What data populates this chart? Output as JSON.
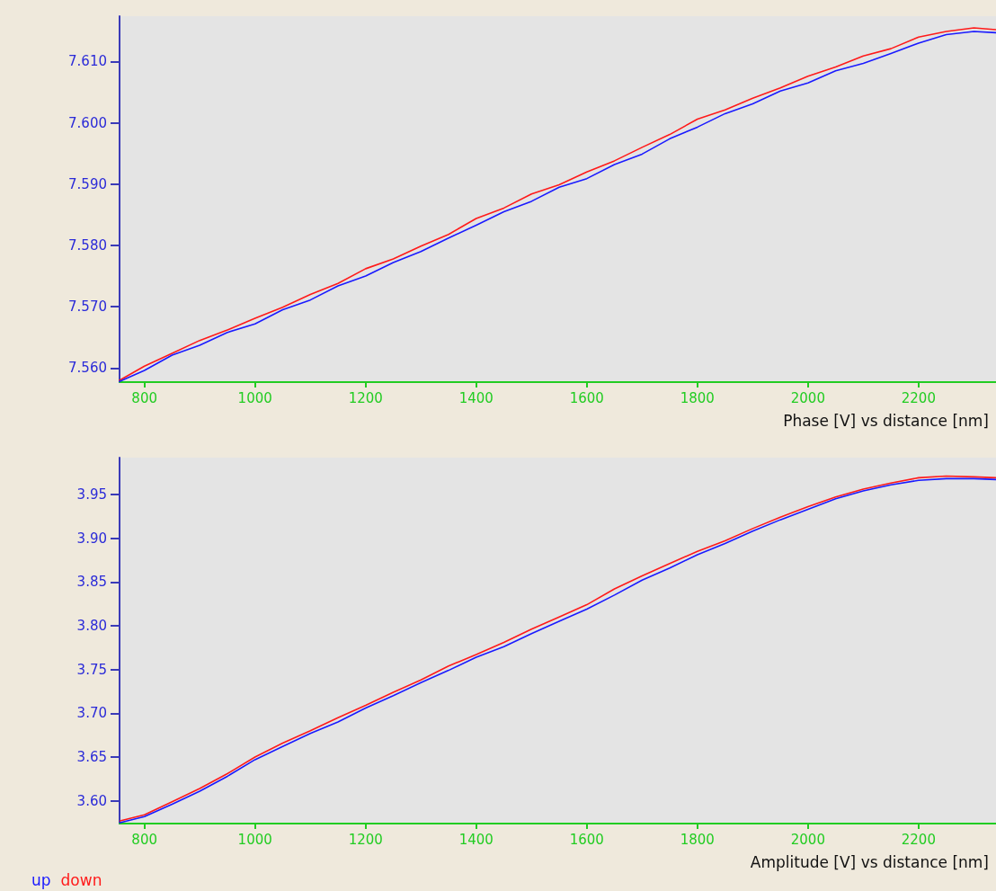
{
  "chart_data": [
    {
      "type": "line",
      "xlabel": "Phase [V] vs distance [nm]",
      "xlim": [
        755,
        2340
      ],
      "ylim": [
        7.5577,
        7.6174
      ],
      "xticks": [
        800,
        1000,
        1200,
        1400,
        1600,
        1800,
        2000,
        2200
      ],
      "yticks": [
        {
          "value": 7.56,
          "label": "7.560"
        },
        {
          "value": 7.57,
          "label": "7.570"
        },
        {
          "value": 7.58,
          "label": "7.580"
        },
        {
          "value": 7.59,
          "label": "7.590"
        },
        {
          "value": 7.6,
          "label": "7.600"
        },
        {
          "value": 7.61,
          "label": "7.610"
        }
      ],
      "grid": false,
      "marker": "none",
      "line_style": "solid",
      "x": [
        755,
        800,
        850,
        900,
        950,
        1000,
        1050,
        1100,
        1150,
        1200,
        1250,
        1300,
        1350,
        1400,
        1450,
        1500,
        1550,
        1600,
        1650,
        1700,
        1750,
        1800,
        1850,
        1900,
        1950,
        2000,
        2050,
        2100,
        2150,
        2200,
        2250,
        2300,
        2340
      ],
      "series": [
        {
          "color": "#1a1aff",
          "values": [
            7.5578,
            7.5596,
            7.5621,
            7.5637,
            7.5658,
            7.5672,
            7.5695,
            7.5711,
            7.5734,
            7.575,
            7.5772,
            7.579,
            7.5812,
            7.5833,
            7.5855,
            7.5872,
            7.5895,
            7.5909,
            7.5932,
            7.5949,
            7.5974,
            7.5993,
            7.6015,
            7.6031,
            7.6052,
            7.6065,
            7.6085,
            7.6097,
            7.6113,
            7.613,
            7.6144,
            7.6149,
            7.6147
          ]
        },
        {
          "color": "#ff1a1a",
          "values": [
            7.558,
            7.5603,
            7.5624,
            7.5645,
            7.5662,
            7.5681,
            7.5699,
            7.572,
            7.5738,
            7.5762,
            7.5778,
            7.5799,
            7.5818,
            7.5844,
            7.5861,
            7.5884,
            7.5899,
            7.592,
            7.5938,
            7.596,
            7.5981,
            7.6006,
            7.6021,
            7.604,
            7.6057,
            7.6076,
            7.6091,
            7.6109,
            7.6121,
            7.614,
            7.6149,
            7.6155,
            7.6152
          ]
        }
      ]
    },
    {
      "type": "line",
      "xlabel": "Amplitude [V] vs distance [nm]",
      "xlim": [
        755,
        2340
      ],
      "ylim": [
        3.574,
        3.992
      ],
      "xticks": [
        800,
        1000,
        1200,
        1400,
        1600,
        1800,
        2000,
        2200
      ],
      "yticks": [
        {
          "value": 3.6,
          "label": "3.60"
        },
        3.65,
        {
          "value": 3.7,
          "label": "3.70"
        },
        3.75,
        {
          "value": 3.8,
          "label": "3.80"
        },
        3.85,
        {
          "value": 3.9,
          "label": "3.90"
        },
        3.95
      ],
      "grid": false,
      "marker": "none",
      "line_style": "solid",
      "legend": "bottom left",
      "x": [
        756,
        800,
        850,
        900,
        950,
        1000,
        1050,
        1100,
        1150,
        1200,
        1250,
        1300,
        1350,
        1400,
        1450,
        1500,
        1550,
        1600,
        1650,
        1700,
        1750,
        1800,
        1850,
        1900,
        1950,
        2000,
        2050,
        2100,
        2150,
        2200,
        2250,
        2300,
        2340
      ],
      "series": [
        {
          "name": "up",
          "color": "#1a1aff",
          "values": [
            3.575,
            3.582,
            3.596,
            3.611,
            3.628,
            3.647,
            3.662,
            3.677,
            3.69,
            3.706,
            3.72,
            3.735,
            3.749,
            3.764,
            3.776,
            3.791,
            3.805,
            3.819,
            3.835,
            3.852,
            3.866,
            3.881,
            3.894,
            3.908,
            3.921,
            3.933,
            3.945,
            3.954,
            3.961,
            3.966,
            3.968,
            3.968,
            3.967
          ]
        },
        {
          "name": "down",
          "color": "#ff1a1a",
          "values": [
            3.577,
            3.584,
            3.599,
            3.614,
            3.631,
            3.65,
            3.666,
            3.68,
            3.695,
            3.709,
            3.724,
            3.738,
            3.754,
            3.767,
            3.781,
            3.796,
            3.81,
            3.824,
            3.842,
            3.857,
            3.871,
            3.885,
            3.897,
            3.911,
            3.924,
            3.936,
            3.947,
            3.956,
            3.963,
            3.969,
            3.971,
            3.97,
            3.969
          ]
        }
      ]
    }
  ]
}
